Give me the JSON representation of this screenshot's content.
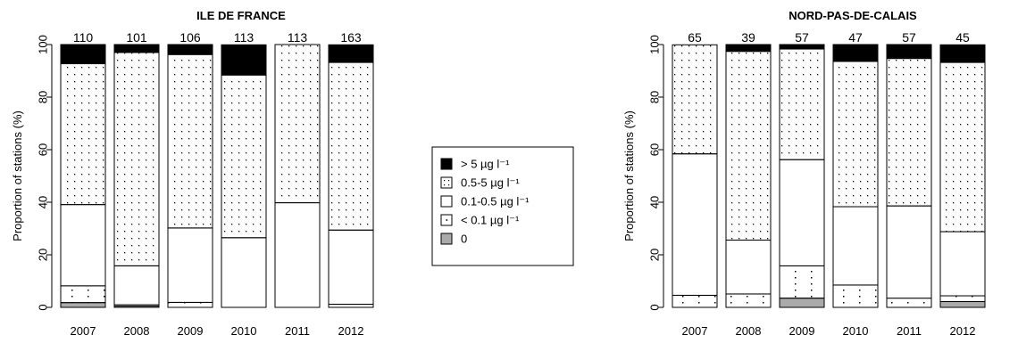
{
  "colors": {
    "above_5": "#000000",
    "c_0_5_5": "#ffffff",
    "c_0_1_0_5": "#ffffff",
    "below_0_1": "#ffffff",
    "zero": "#aaaaaa",
    "stroke": "#000000"
  },
  "legend": {
    "items": [
      {
        "key": "above_5",
        "label": "> 5 µg l⁻¹",
        "pattern": "solid-black"
      },
      {
        "key": "c_0_5_5",
        "label": "0.5-5 µg l⁻¹",
        "pattern": "dense-dots"
      },
      {
        "key": "c_0_1_0_5",
        "label": "0.1-0.5 µg l⁻¹",
        "pattern": "empty"
      },
      {
        "key": "below_0_1",
        "label": "< 0.1 µg l⁻¹",
        "pattern": "sparse-dots"
      },
      {
        "key": "zero",
        "label": "0",
        "pattern": "solid-grey"
      }
    ]
  },
  "chart_data": [
    {
      "type": "bar",
      "stacked": true,
      "title": "ILE DE FRANCE",
      "ylabel": "Proportion of stations (%)",
      "ylim": [
        0,
        100
      ],
      "yticks": [
        "0",
        "20",
        "40",
        "60",
        "80",
        "100"
      ],
      "categories": [
        "2007",
        "2008",
        "2009",
        "2010",
        "2011",
        "2012"
      ],
      "n_stations": [
        "110",
        "101",
        "106",
        "113",
        "113",
        "163"
      ],
      "series": [
        {
          "name": "0",
          "key": "zero",
          "values": [
            1.8,
            0.5,
            0,
            0,
            0,
            0
          ]
        },
        {
          "name": "< 0.1 µg l⁻¹",
          "key": "below_0_1",
          "values": [
            6.4,
            0.5,
            1.9,
            0,
            0,
            1.2
          ]
        },
        {
          "name": "0.1-0.5 µg l⁻¹",
          "key": "c_0_1_0_5",
          "values": [
            30.9,
            14.8,
            28.3,
            26.5,
            39.8,
            28.2
          ]
        },
        {
          "name": "0.5-5 µg l⁻¹",
          "key": "c_0_5_5",
          "values": [
            53.6,
            81.2,
            66.0,
            61.9,
            60.2,
            63.8
          ]
        },
        {
          "name": "> 5 µg l⁻¹",
          "key": "above_5",
          "values": [
            7.3,
            3.0,
            3.8,
            11.5,
            0,
            6.7
          ]
        }
      ]
    },
    {
      "type": "bar",
      "stacked": true,
      "title": "NORD-PAS-DE-CALAIS",
      "ylabel": "Proportion of stations (%)",
      "ylim": [
        0,
        100
      ],
      "yticks": [
        "0",
        "20",
        "40",
        "60",
        "80",
        "100"
      ],
      "categories": [
        "2007",
        "2008",
        "2009",
        "2010",
        "2011",
        "2012"
      ],
      "n_stations": [
        "65",
        "39",
        "57",
        "47",
        "57",
        "45"
      ],
      "series": [
        {
          "name": "0",
          "key": "zero",
          "values": [
            0,
            0,
            3.5,
            0,
            0,
            2.2
          ]
        },
        {
          "name": "< 0.1 µg l⁻¹",
          "key": "below_0_1",
          "values": [
            4.6,
            5.1,
            12.3,
            8.5,
            3.5,
            2.2
          ]
        },
        {
          "name": "0.1-0.5 µg l⁻¹",
          "key": "c_0_1_0_5",
          "values": [
            53.8,
            20.5,
            40.4,
            29.8,
            35.1,
            24.4
          ]
        },
        {
          "name": "0.5-5 µg l⁻¹",
          "key": "c_0_5_5",
          "values": [
            41.5,
            71.8,
            42.1,
            55.3,
            56.1,
            64.4
          ]
        },
        {
          "name": "> 5 µg l⁻¹",
          "key": "above_5",
          "values": [
            0,
            2.6,
            1.7,
            6.4,
            5.3,
            6.7
          ]
        }
      ]
    }
  ]
}
